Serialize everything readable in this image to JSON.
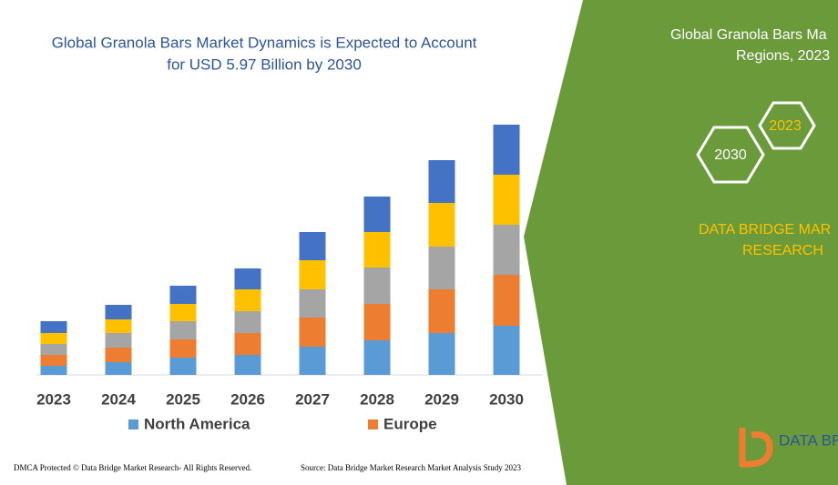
{
  "chart_data": {
    "type": "bar",
    "stacked": true,
    "title": [
      "Global Granola Bars Market Dynamics is Expected to Account",
      "for USD 5.97 Billion by 2030"
    ],
    "categories": [
      "2023",
      "2024",
      "2025",
      "2026",
      "2027",
      "2028",
      "2029",
      "2030"
    ],
    "series": [
      {
        "name": "North America",
        "color": "#5b9bd5",
        "values": [
          10,
          14,
          19,
          22,
          31,
          38,
          46,
          54
        ]
      },
      {
        "name": "Europe",
        "color": "#ed7d31",
        "values": [
          12,
          16,
          20,
          24,
          32,
          40,
          48,
          56
        ]
      },
      {
        "color": "#a5a5a5",
        "values": [
          12,
          16,
          20,
          24,
          31,
          40,
          47,
          55
        ]
      },
      {
        "color": "#ffc000",
        "values": [
          12,
          15,
          19,
          24,
          32,
          39,
          48,
          55
        ]
      },
      {
        "color": "#4472c4",
        "values": [
          13,
          16,
          20,
          23,
          31,
          39,
          47,
          55
        ]
      }
    ]
  },
  "side_panel": {
    "title": [
      "Global Granola Bars Ma",
      "Regions, 2023"
    ],
    "hex_left": "2030",
    "hex_right": "2023",
    "brand": [
      "DATA BRIDGE MAR",
      "RESEARCH"
    ],
    "logo": "DATA BR"
  },
  "footer": {
    "left": "DMCA Protected © Data Bridge Market Research-  All Rights Reserved.",
    "right": "Source: Data Bridge Market Research  Market Analysis Study 2023"
  }
}
